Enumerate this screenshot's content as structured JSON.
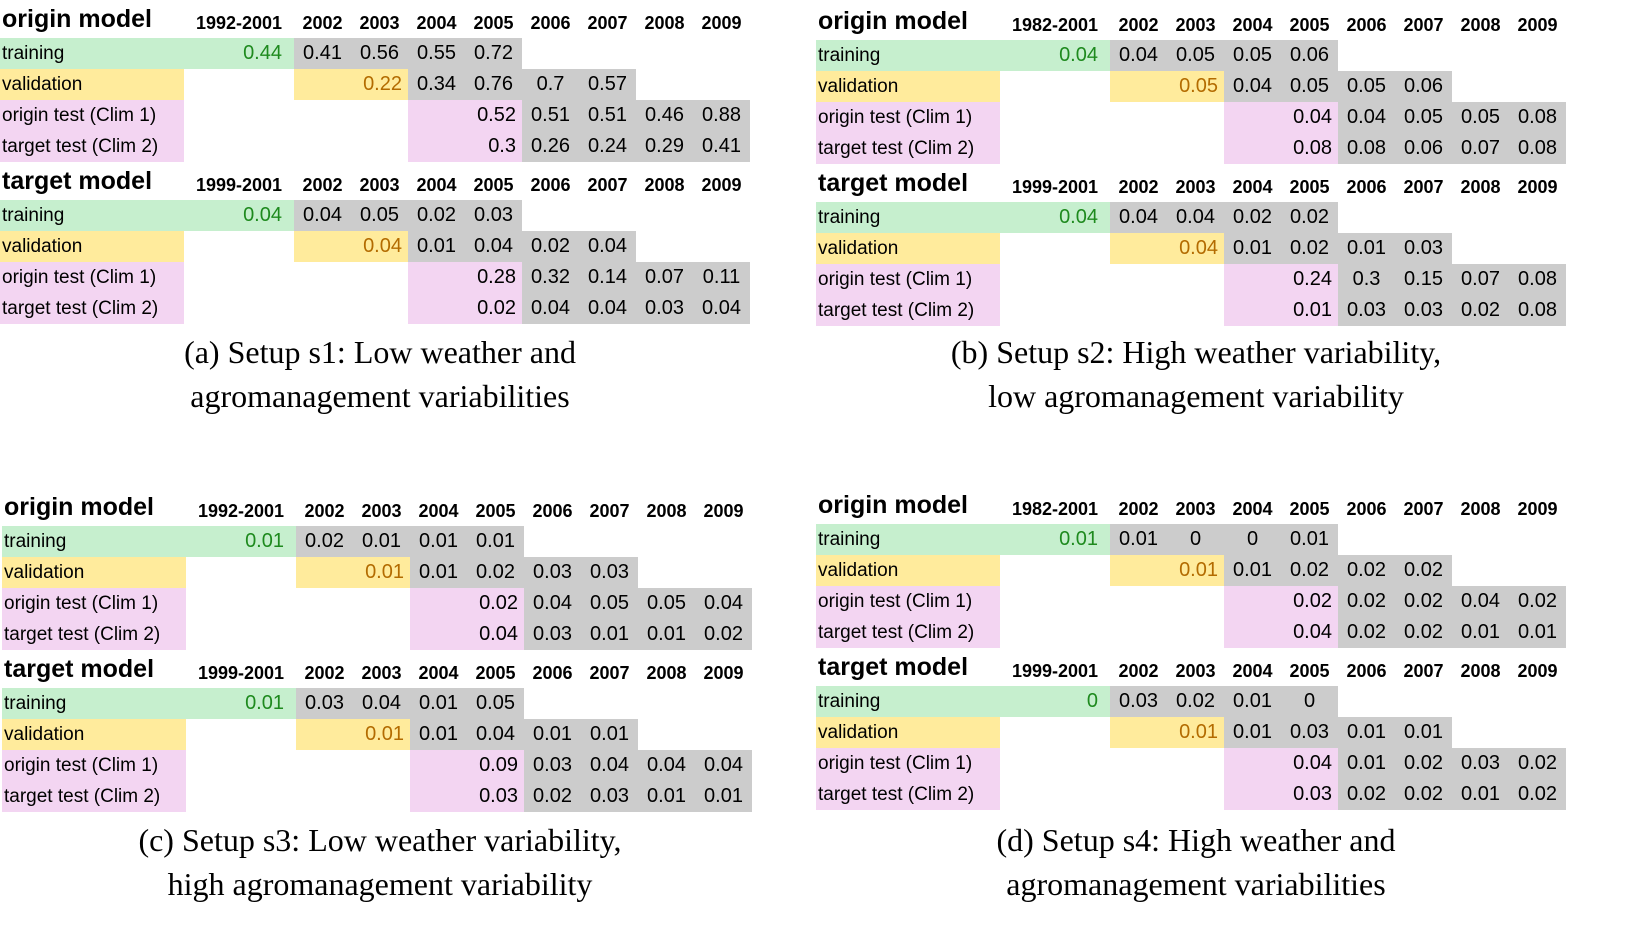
{
  "panels": [
    {
      "caption": [
        "(a) Setup s1: Low weather and",
        "agromanagement variabilities"
      ],
      "tables": [
        {
          "title": "origin model",
          "years": [
            "1992-2001",
            "2002",
            "2003",
            "2004",
            "2005",
            "2006",
            "2007",
            "2008",
            "2009"
          ],
          "rows": [
            {
              "label": "training",
              "values": [
                "0.44",
                "0.41",
                "0.56",
                "0.55",
                "0.72",
                "",
                "",
                "",
                ""
              ]
            },
            {
              "label": "validation",
              "values": [
                "",
                "",
                "0.22",
                "0.34",
                "0.76",
                "0.7",
                "0.57",
                "",
                ""
              ]
            },
            {
              "label": "origin test (Clim 1)",
              "values": [
                "",
                "",
                "",
                "",
                "0.52",
                "0.51",
                "0.51",
                "0.46",
                "0.88"
              ]
            },
            {
              "label": "target test (Clim 2)",
              "values": [
                "",
                "",
                "",
                "",
                "0.3",
                "0.26",
                "0.24",
                "0.29",
                "0.41"
              ]
            }
          ]
        },
        {
          "title": "target model",
          "years": [
            "1999-2001",
            "2002",
            "2003",
            "2004",
            "2005",
            "2006",
            "2007",
            "2008",
            "2009"
          ],
          "rows": [
            {
              "label": "training",
              "values": [
                "0.04",
                "0.04",
                "0.05",
                "0.02",
                "0.03",
                "",
                "",
                "",
                ""
              ]
            },
            {
              "label": "validation",
              "values": [
                "",
                "",
                "0.04",
                "0.01",
                "0.04",
                "0.02",
                "0.04",
                "",
                ""
              ]
            },
            {
              "label": "origin test (Clim 1)",
              "values": [
                "",
                "",
                "",
                "",
                "0.28",
                "0.32",
                "0.14",
                "0.07",
                "0.11"
              ]
            },
            {
              "label": "target test (Clim 2)",
              "values": [
                "",
                "",
                "",
                "",
                "0.02",
                "0.04",
                "0.04",
                "0.03",
                "0.04"
              ]
            }
          ]
        }
      ]
    },
    {
      "caption": [
        "(b) Setup s2: High weather variability,",
        "low agromanagement variability"
      ],
      "tables": [
        {
          "title": "origin model",
          "years": [
            "1982-2001",
            "2002",
            "2003",
            "2004",
            "2005",
            "2006",
            "2007",
            "2008",
            "2009"
          ],
          "rows": [
            {
              "label": "training",
              "values": [
                "0.04",
                "0.04",
                "0.05",
                "0.05",
                "0.06",
                "",
                "",
                "",
                ""
              ]
            },
            {
              "label": "validation",
              "values": [
                "",
                "",
                "0.05",
                "0.04",
                "0.05",
                "0.05",
                "0.06",
                "",
                ""
              ]
            },
            {
              "label": "origin test (Clim 1)",
              "values": [
                "",
                "",
                "",
                "",
                "0.04",
                "0.04",
                "0.05",
                "0.05",
                "0.08"
              ]
            },
            {
              "label": "target test (Clim 2)",
              "values": [
                "",
                "",
                "",
                "",
                "0.08",
                "0.08",
                "0.06",
                "0.07",
                "0.08"
              ]
            }
          ]
        },
        {
          "title": "target model",
          "years": [
            "1999-2001",
            "2002",
            "2003",
            "2004",
            "2005",
            "2006",
            "2007",
            "2008",
            "2009"
          ],
          "rows": [
            {
              "label": "training",
              "values": [
                "0.04",
                "0.04",
                "0.04",
                "0.02",
                "0.02",
                "",
                "",
                "",
                ""
              ]
            },
            {
              "label": "validation",
              "values": [
                "",
                "",
                "0.04",
                "0.01",
                "0.02",
                "0.01",
                "0.03",
                "",
                ""
              ]
            },
            {
              "label": "origin test (Clim 1)",
              "values": [
                "",
                "",
                "",
                "",
                "0.24",
                "0.3",
                "0.15",
                "0.07",
                "0.08"
              ]
            },
            {
              "label": "target test (Clim 2)",
              "values": [
                "",
                "",
                "",
                "",
                "0.01",
                "0.03",
                "0.03",
                "0.02",
                "0.08"
              ]
            }
          ]
        }
      ]
    },
    {
      "caption": [
        "(c) Setup s3: Low weather variability,",
        "high agromanagement variability"
      ],
      "tables": [
        {
          "title": "origin model",
          "years": [
            "1992-2001",
            "2002",
            "2003",
            "2004",
            "2005",
            "2006",
            "2007",
            "2008",
            "2009"
          ],
          "rows": [
            {
              "label": "training",
              "values": [
                "0.01",
                "0.02",
                "0.01",
                "0.01",
                "0.01",
                "",
                "",
                "",
                ""
              ]
            },
            {
              "label": "validation",
              "values": [
                "",
                "",
                "0.01",
                "0.01",
                "0.02",
                "0.03",
                "0.03",
                "",
                ""
              ]
            },
            {
              "label": "origin test (Clim 1)",
              "values": [
                "",
                "",
                "",
                "",
                "0.02",
                "0.04",
                "0.05",
                "0.05",
                "0.04"
              ]
            },
            {
              "label": "target test (Clim 2)",
              "values": [
                "",
                "",
                "",
                "",
                "0.04",
                "0.03",
                "0.01",
                "0.01",
                "0.02"
              ]
            }
          ]
        },
        {
          "title": "target model",
          "years": [
            "1999-2001",
            "2002",
            "2003",
            "2004",
            "2005",
            "2006",
            "2007",
            "2008",
            "2009"
          ],
          "rows": [
            {
              "label": "training",
              "values": [
                "0.01",
                "0.03",
                "0.04",
                "0.01",
                "0.05",
                "",
                "",
                "",
                ""
              ]
            },
            {
              "label": "validation",
              "values": [
                "",
                "",
                "0.01",
                "0.01",
                "0.04",
                "0.01",
                "0.01",
                "",
                ""
              ]
            },
            {
              "label": "origin test (Clim 1)",
              "values": [
                "",
                "",
                "",
                "",
                "0.09",
                "0.03",
                "0.04",
                "0.04",
                "0.04"
              ]
            },
            {
              "label": "target test (Clim 2)",
              "values": [
                "",
                "",
                "",
                "",
                "0.03",
                "0.02",
                "0.03",
                "0.01",
                "0.01"
              ]
            }
          ]
        }
      ]
    },
    {
      "caption": [
        "(d) Setup s4: High weather and",
        "agromanagement variabilities"
      ],
      "tables": [
        {
          "title": "origin model",
          "years": [
            "1982-2001",
            "2002",
            "2003",
            "2004",
            "2005",
            "2006",
            "2007",
            "2008",
            "2009"
          ],
          "rows": [
            {
              "label": "training",
              "values": [
                "0.01",
                "0.01",
                "0",
                "0",
                "0.01",
                "",
                "",
                "",
                ""
              ]
            },
            {
              "label": "validation",
              "values": [
                "",
                "",
                "0.01",
                "0.01",
                "0.02",
                "0.02",
                "0.02",
                "",
                ""
              ]
            },
            {
              "label": "origin test (Clim 1)",
              "values": [
                "",
                "",
                "",
                "",
                "0.02",
                "0.02",
                "0.02",
                "0.04",
                "0.02"
              ]
            },
            {
              "label": "target test (Clim 2)",
              "values": [
                "",
                "",
                "",
                "",
                "0.04",
                "0.02",
                "0.02",
                "0.01",
                "0.01"
              ]
            }
          ]
        },
        {
          "title": "target model",
          "years": [
            "1999-2001",
            "2002",
            "2003",
            "2004",
            "2005",
            "2006",
            "2007",
            "2008",
            "2009"
          ],
          "rows": [
            {
              "label": "training",
              "values": [
                "0",
                "0.03",
                "0.02",
                "0.01",
                "0",
                "",
                "",
                "",
                ""
              ]
            },
            {
              "label": "validation",
              "values": [
                "",
                "",
                "0.01",
                "0.01",
                "0.03",
                "0.01",
                "0.01",
                "",
                ""
              ]
            },
            {
              "label": "origin test (Clim 1)",
              "values": [
                "",
                "",
                "",
                "",
                "0.04",
                "0.01",
                "0.02",
                "0.03",
                "0.02"
              ]
            },
            {
              "label": "target test (Clim 2)",
              "values": [
                "",
                "",
                "",
                "",
                "0.03",
                "0.02",
                "0.02",
                "0.01",
                "0.02"
              ]
            }
          ]
        }
      ]
    }
  ]
}
